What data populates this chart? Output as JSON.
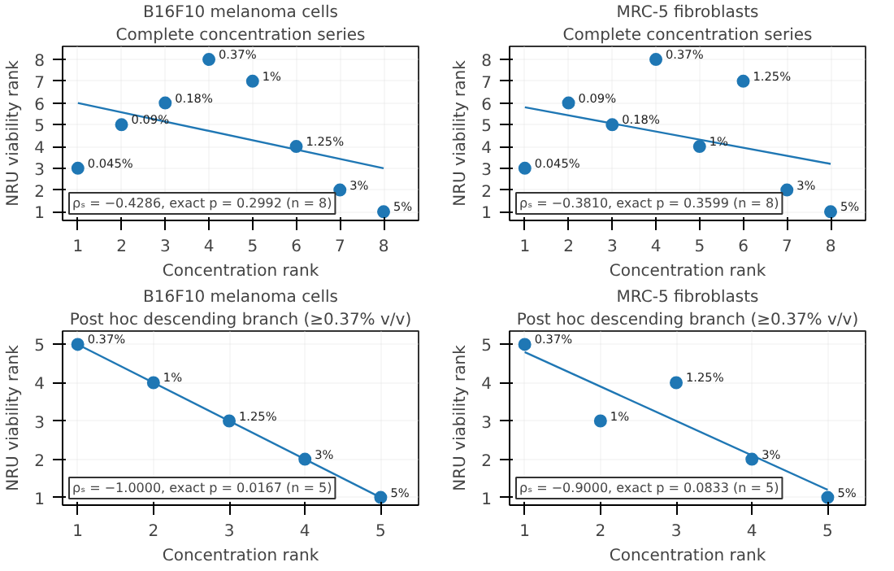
{
  "chart_data": [
    {
      "type": "scatter",
      "title": "B16F10 melanoma cells",
      "subtitle": "Complete concentration series",
      "xlabel": "Concentration rank",
      "ylabel": "NRU viability rank",
      "xlim": [
        0.65,
        8.8
      ],
      "ylim": [
        0.6,
        8.6
      ],
      "xticks": [
        1,
        2,
        3,
        4,
        5,
        6,
        7,
        8
      ],
      "yticks": [
        1,
        2,
        3,
        4,
        5,
        6,
        7,
        8
      ],
      "grid": true,
      "annotations": [
        "ρₛ = −0.4286, exact p = 0.2992 (n = 8)",
        {
          "text": "0.045%",
          "x": 1,
          "y": 3
        },
        {
          "text": "0.09%",
          "x": 2,
          "y": 5
        },
        {
          "text": "0.18%",
          "x": 3,
          "y": 6
        },
        {
          "text": "0.37%",
          "x": 4,
          "y": 8
        },
        {
          "text": "1%",
          "x": 5,
          "y": 7
        },
        {
          "text": "1.25%",
          "x": 6,
          "y": 4
        },
        {
          "text": "3%",
          "x": 7,
          "y": 2
        },
        {
          "text": "5%",
          "x": 8,
          "y": 1
        }
      ],
      "series": [
        {
          "marker": "circle",
          "color": "#1f77b4",
          "x": [
            1,
            2,
            3,
            4,
            5,
            6,
            7,
            8
          ],
          "values": [
            3,
            5,
            6,
            8,
            7,
            4,
            2,
            1
          ]
        },
        {
          "type": "line",
          "color": "#1f77b4",
          "x": [
            1,
            8
          ],
          "values": [
            6.0,
            3.0
          ]
        }
      ]
    },
    {
      "type": "scatter",
      "title": "MRC-5 fibroblasts",
      "subtitle": "Complete concentration series",
      "xlabel": "Concentration rank",
      "ylabel": "NRU viability rank",
      "xlim": [
        0.65,
        8.8
      ],
      "ylim": [
        0.6,
        8.6
      ],
      "xticks": [
        1,
        2,
        3,
        4,
        5,
        6,
        7,
        8
      ],
      "yticks": [
        1,
        2,
        3,
        4,
        5,
        6,
        7,
        8
      ],
      "grid": true,
      "annotations": [
        "ρₛ = −0.3810, exact p = 0.3599 (n = 8)",
        {
          "text": "0.045%",
          "x": 1,
          "y": 3
        },
        {
          "text": "0.09%",
          "x": 2,
          "y": 6
        },
        {
          "text": "0.18%",
          "x": 3,
          "y": 5
        },
        {
          "text": "0.37%",
          "x": 4,
          "y": 8
        },
        {
          "text": "1%",
          "x": 5,
          "y": 4
        },
        {
          "text": "1.25%",
          "x": 6,
          "y": 7
        },
        {
          "text": "3%",
          "x": 7,
          "y": 2
        },
        {
          "text": "5%",
          "x": 8,
          "y": 1
        }
      ],
      "series": [
        {
          "marker": "circle",
          "color": "#1f77b4",
          "x": [
            1,
            2,
            3,
            4,
            5,
            6,
            7,
            8
          ],
          "values": [
            3,
            6,
            5,
            8,
            4,
            7,
            2,
            1
          ]
        },
        {
          "type": "line",
          "color": "#1f77b4",
          "x": [
            1,
            8
          ],
          "values": [
            5.8,
            3.2
          ]
        }
      ]
    },
    {
      "type": "scatter",
      "title": "B16F10 melanoma cells",
      "subtitle": "Post hoc descending branch (≥0.37% v/v)",
      "xlabel": "Concentration rank",
      "ylabel": "NRU viability rank",
      "xlim": [
        0.8,
        5.5
      ],
      "ylim": [
        0.8,
        5.35
      ],
      "xticks": [
        1,
        2,
        3,
        4,
        5
      ],
      "yticks": [
        1,
        2,
        3,
        4,
        5
      ],
      "grid": true,
      "annotations": [
        "ρₛ = −1.0000, exact p = 0.0167 (n = 5)",
        {
          "text": "0.37%",
          "x": 1,
          "y": 5
        },
        {
          "text": "1%",
          "x": 2,
          "y": 4
        },
        {
          "text": "1.25%",
          "x": 3,
          "y": 3
        },
        {
          "text": "3%",
          "x": 4,
          "y": 2
        },
        {
          "text": "5%",
          "x": 5,
          "y": 1
        }
      ],
      "series": [
        {
          "marker": "circle",
          "color": "#1f77b4",
          "x": [
            1,
            2,
            3,
            4,
            5
          ],
          "values": [
            5,
            4,
            3,
            2,
            1
          ]
        },
        {
          "type": "line",
          "color": "#1f77b4",
          "x": [
            1,
            5
          ],
          "values": [
            5.0,
            1.0
          ]
        }
      ]
    },
    {
      "type": "scatter",
      "title": "MRC-5 fibroblasts",
      "subtitle": "Post hoc descending branch (≥0.37% v/v)",
      "xlabel": "Concentration rank",
      "ylabel": "NRU viability rank",
      "xlim": [
        0.8,
        5.5
      ],
      "ylim": [
        0.8,
        5.35
      ],
      "xticks": [
        1,
        2,
        3,
        4,
        5
      ],
      "yticks": [
        1,
        2,
        3,
        4,
        5
      ],
      "grid": true,
      "annotations": [
        "ρₛ = −0.9000, exact p = 0.0833 (n = 5)",
        {
          "text": "0.37%",
          "x": 1,
          "y": 5
        },
        {
          "text": "1%",
          "x": 2,
          "y": 3
        },
        {
          "text": "1.25%",
          "x": 3,
          "y": 4
        },
        {
          "text": "3%",
          "x": 4,
          "y": 2
        },
        {
          "text": "5%",
          "x": 5,
          "y": 1
        }
      ],
      "series": [
        {
          "marker": "circle",
          "color": "#1f77b4",
          "x": [
            1,
            2,
            3,
            4,
            5
          ],
          "values": [
            5,
            3,
            4,
            2,
            1
          ]
        },
        {
          "type": "line",
          "color": "#1f77b4",
          "x": [
            1,
            5
          ],
          "values": [
            4.8,
            1.2
          ]
        }
      ]
    }
  ]
}
